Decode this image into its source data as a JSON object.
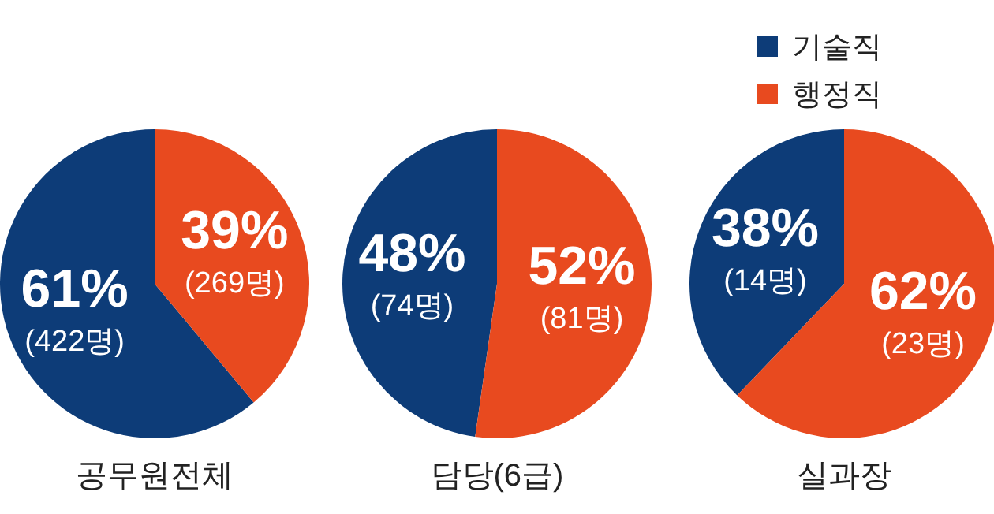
{
  "chart_data": [
    {
      "type": "pie",
      "title": "공무원전체",
      "categories": [
        null,
        null
      ],
      "values": [
        422,
        269
      ],
      "colors": [
        "#0d3c78",
        "#e84a1f"
      ],
      "value_labels": [
        "61%\n(422명)",
        "39%\n(269명)"
      ],
      "legend": false
    },
    {
      "type": "pie",
      "title": "담당(6급)",
      "categories": [
        null,
        null
      ],
      "values": [
        74,
        81
      ],
      "colors": [
        "#0d3c78",
        "#e84a1f"
      ],
      "value_labels": [
        "48%\n(74명)",
        "52%\n(81명)"
      ],
      "legend": false
    },
    {
      "type": "pie",
      "title": "실과장",
      "categories": [
        "기술직",
        "행정직"
      ],
      "values": [
        14,
        23
      ],
      "colors": [
        "#0d3c78",
        "#e84a1f"
      ],
      "value_labels": [
        "38%\n(14명)",
        "62%\n(23명)"
      ],
      "legend": "top"
    }
  ]
}
